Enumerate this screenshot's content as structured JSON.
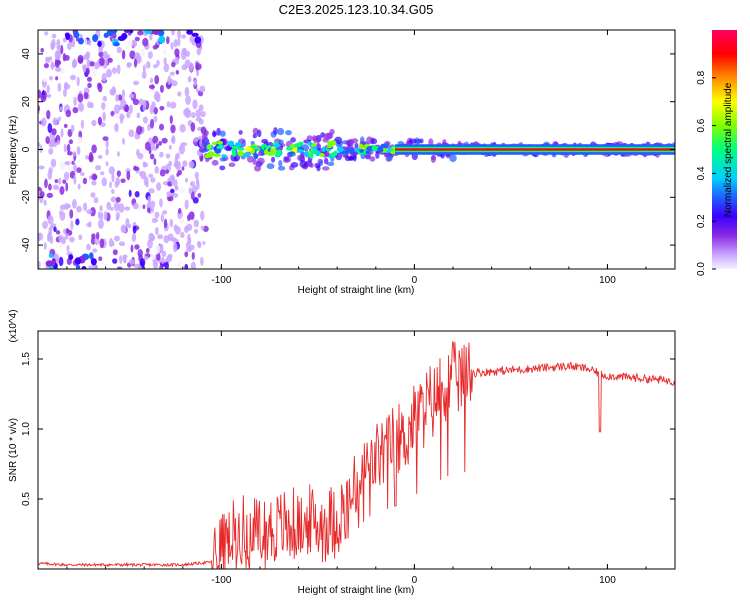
{
  "title": "C2E3.2025.123.10.34.G05",
  "chart_data": [
    {
      "type": "heatmap",
      "name": "spectrogram",
      "xlabel": "Height of straight line (km)",
      "ylabel": "Frequency (Hz)",
      "xlim": [
        -195,
        135
      ],
      "ylim": [
        -50,
        50
      ],
      "xticks": [
        -100,
        0,
        100
      ],
      "yticks": [
        -40,
        -20,
        0,
        20,
        40
      ],
      "xtick_labels": [
        "-100",
        "0",
        "100"
      ],
      "ytick_labels": [
        "-40",
        "-20",
        "0",
        "20",
        "40"
      ],
      "colorbar": {
        "label": "Normalized spectral amplitude",
        "range": [
          0,
          1
        ],
        "ticks": [
          0.0,
          0.2,
          0.4,
          0.6,
          0.8
        ],
        "tick_labels": [
          "0.0",
          "0.2",
          "0.4",
          "0.6",
          "0.8"
        ],
        "stops": [
          "#f6f0ff",
          "#c9a6ff",
          "#8a2be2",
          "#3b00ff",
          "#1f5fff",
          "#00d0ff",
          "#00ff7f",
          "#7fff00",
          "#ffff00",
          "#ff8c00",
          "#ff0000",
          "#ff0060"
        ]
      },
      "features": [
        {
          "name": "noise-region",
          "x": [
            -195,
            -108
          ],
          "freq": [
            -50,
            50
          ],
          "amplitude": 0.15
        },
        {
          "name": "signal-track",
          "x": [
            -110,
            135
          ],
          "freq_start": 0,
          "freq_end": 0,
          "amplitude": 0.9
        }
      ]
    },
    {
      "type": "line",
      "name": "snr",
      "xlabel": "Height of straight line (km)",
      "ylabel": "SNR (10 * v/v)",
      "scale_label": "(x10^4)",
      "xlim": [
        -195,
        135
      ],
      "ylim": [
        0,
        1.7
      ],
      "xticks": [
        -100,
        0,
        100
      ],
      "yticks": [
        0.5,
        1.0,
        1.5
      ],
      "xtick_labels": [
        "-100",
        "0",
        "100"
      ],
      "ytick_labels": [
        "0.5",
        "1.0",
        "1.5"
      ],
      "color": "#e8292a",
      "series": [
        {
          "name": "SNR",
          "x": [
            -195,
            -180,
            -160,
            -140,
            -120,
            -105,
            -100,
            -90,
            -80,
            -70,
            -60,
            -50,
            -40,
            -35,
            -30,
            -25,
            -20,
            -15,
            -10,
            -5,
            0,
            5,
            10,
            15,
            20,
            25,
            30,
            40,
            50,
            60,
            70,
            80,
            90,
            95,
            100,
            110,
            120,
            135
          ],
          "values": [
            0.04,
            0.03,
            0.03,
            0.03,
            0.03,
            0.05,
            0.15,
            0.25,
            0.27,
            0.28,
            0.3,
            0.32,
            0.36,
            0.45,
            0.55,
            0.72,
            0.8,
            0.85,
            0.9,
            0.95,
            1.05,
            1.15,
            1.2,
            1.3,
            1.36,
            1.38,
            1.4,
            1.41,
            1.42,
            1.43,
            1.44,
            1.45,
            1.43,
            1.4,
            1.38,
            1.37,
            1.36,
            1.34
          ]
        }
      ]
    }
  ]
}
